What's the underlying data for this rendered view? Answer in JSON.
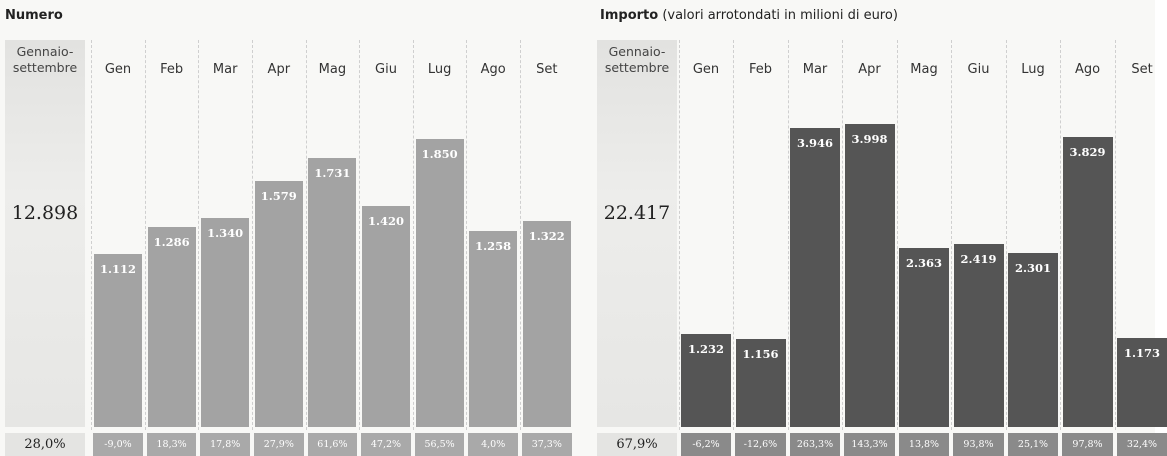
{
  "chart_data": [
    {
      "type": "bar",
      "title": "Numero",
      "categories": [
        "Gen",
        "Feb",
        "Mar",
        "Apr",
        "Mag",
        "Giu",
        "Lug",
        "Ago",
        "Set"
      ],
      "values": [
        1112,
        1286,
        1340,
        1579,
        1731,
        1420,
        1850,
        1258,
        1322
      ],
      "value_labels": [
        "1.112",
        "1.286",
        "1.340",
        "1.579",
        "1.731",
        "1.420",
        "1.850",
        "1.258",
        "1.322"
      ],
      "color": "#a3a3a3",
      "changes": {
        "values": [
          -9.0,
          18.3,
          17.8,
          27.9,
          61.6,
          47.2,
          56.5,
          4.0,
          37.3
        ],
        "value_labels": [
          "-9,0%",
          "18,3%",
          "17,8%",
          "27,9%",
          "61,6%",
          "47,2%",
          "56,5%",
          "4,0%",
          "37,3%"
        ]
      },
      "total": {
        "label": "Gennaio-settembre",
        "value": 12898,
        "value_label": "12.898",
        "change": 28.0,
        "change_label": "28,0%"
      }
    },
    {
      "type": "bar",
      "title": "Importo",
      "subtitle": "(valori arrotondati in milioni di euro)",
      "categories": [
        "Gen",
        "Feb",
        "Mar",
        "Apr",
        "Mag",
        "Giu",
        "Lug",
        "Ago",
        "Set"
      ],
      "values": [
        1232,
        1156,
        3946,
        3998,
        2363,
        2419,
        2301,
        3829,
        1173
      ],
      "value_labels": [
        "1.232",
        "1.156",
        "3.946",
        "3.998",
        "2.363",
        "2.419",
        "2.301",
        "3.829",
        "1.173"
      ],
      "color": "#555555",
      "changes": {
        "values": [
          -6.2,
          -12.6,
          263.3,
          143.3,
          13.8,
          93.8,
          25.1,
          97.8,
          32.4
        ],
        "value_labels": [
          "-6,2%",
          "-12,6%",
          "263,3%",
          "143,3%",
          "13,8%",
          "93,8%",
          "25,1%",
          "97,8%",
          "32,4%"
        ]
      },
      "total": {
        "label": "Gennaio-settembre",
        "value": 22417,
        "value_label": "22.417",
        "change": 67.9,
        "change_label": "67,9%"
      }
    }
  ]
}
